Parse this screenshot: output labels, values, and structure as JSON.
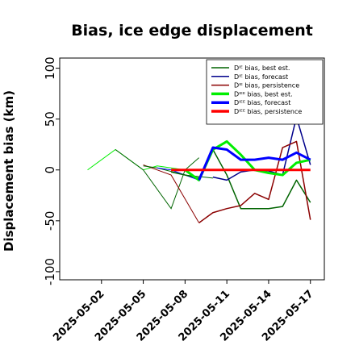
{
  "chart_data": {
    "type": "line",
    "title": "Bias, ice edge displacement",
    "xlabel": "",
    "ylabel": "Displacement bias (km)",
    "ylim": [
      -108,
      110
    ],
    "yticks": [
      100,
      50,
      0,
      -50,
      -100
    ],
    "xlim": [
      "2025-04-29",
      "2025-05-18"
    ],
    "xticks": [
      "2025-05-02",
      "2025-05-05",
      "2025-05-08",
      "2025-05-11",
      "2025-05-14",
      "2025-05-17"
    ],
    "highlighted_xtick": "2025-05-08",
    "highlight_color": "#228b22",
    "grid": false,
    "legend_position": "upper right",
    "series": [
      {
        "name": "Dᴵᴱ bias, best est.",
        "color": "#006400",
        "width": 1.5,
        "x": [
          "2025-05-07",
          "2025-05-09",
          "2025-05-10",
          "2025-05-11",
          "2025-05-12",
          "2025-05-13",
          "2025-05-14",
          "2025-05-15",
          "2025-05-16",
          "2025-05-17"
        ],
        "y": [
          -2,
          -8,
          20,
          -5,
          -38,
          -38,
          -38,
          -36,
          -10,
          -32
        ]
      },
      {
        "name": "Dᴵᴱ bias, forecast",
        "color": "#00008b",
        "width": 1.5,
        "x": [
          "2025-05-10",
          "2025-05-11",
          "2025-05-12",
          "2025-05-13",
          "2025-05-14",
          "2025-05-15",
          "2025-05-16",
          "2025-05-17"
        ],
        "y": [
          -7,
          -10,
          -2,
          0,
          -1,
          -5,
          52,
          5
        ]
      },
      {
        "name": "Dᴵᴱ bias, persistence",
        "color": "#8b0000",
        "width": 1.5,
        "x": [
          "2025-05-09",
          "2025-05-10",
          "2025-05-11",
          "2025-05-12",
          "2025-05-13",
          "2025-05-14",
          "2025-05-15",
          "2025-05-16",
          "2025-05-17"
        ],
        "y": [
          -52,
          -42,
          -38,
          -35,
          -23,
          -29,
          22,
          28,
          -49
        ]
      },
      {
        "name": "Dᴵᴱᴱ bias, best est.",
        "color": "#00ee00",
        "width": 3,
        "x": [
          "2025-05-08",
          "2025-05-09",
          "2025-05-10",
          "2025-05-11",
          "2025-05-12",
          "2025-05-13",
          "2025-05-14",
          "2025-05-15",
          "2025-05-16",
          "2025-05-17"
        ],
        "y": [
          0,
          -10,
          20,
          28,
          15,
          0,
          -3,
          -5,
          7,
          10
        ]
      },
      {
        "name": "Dᴵᴱᴱ bias, forecast",
        "color": "#0000ff",
        "width": 3,
        "x": [
          "2025-05-09",
          "2025-05-10",
          "2025-05-11",
          "2025-05-12",
          "2025-05-13",
          "2025-05-14",
          "2025-05-15",
          "2025-05-16",
          "2025-05-17"
        ],
        "y": [
          -10,
          22,
          20,
          10,
          10,
          12,
          10,
          17,
          10
        ]
      },
      {
        "name": "Dᴵᴱᴱ bias, persistence",
        "color": "#ff0000",
        "width": 3,
        "x": [
          "2025-05-07",
          "2025-05-09",
          "2025-05-11",
          "2025-05-13",
          "2025-05-15",
          "2025-05-17"
        ],
        "y": [
          0,
          0,
          0,
          0,
          0,
          0
        ]
      }
    ],
    "background_lines": [
      {
        "color": "#00ee00",
        "width": 1,
        "x": [
          "2025-05-01",
          "2025-05-03",
          "2025-05-05",
          "2025-05-06",
          "2025-05-08"
        ],
        "y": [
          0,
          20,
          0,
          4,
          0
        ]
      },
      {
        "color": "#006400",
        "width": 1,
        "x": [
          "2025-05-03",
          "2025-05-05",
          "2025-05-07",
          "2025-05-08",
          "2025-05-09"
        ],
        "y": [
          20,
          0,
          -38,
          0,
          12
        ]
      },
      {
        "color": "#8b0000",
        "width": 1,
        "x": [
          "2025-05-05",
          "2025-05-07",
          "2025-05-09"
        ],
        "y": [
          5,
          -5,
          -52
        ]
      },
      {
        "color": "#006400",
        "width": 1,
        "x": [
          "2025-05-05",
          "2025-05-06",
          "2025-05-08",
          "2025-05-10"
        ],
        "y": [
          4,
          2,
          -5,
          -8
        ]
      },
      {
        "color": "#0000ff",
        "width": 1,
        "x": [
          "2025-05-06",
          "2025-05-07",
          "2025-05-09"
        ],
        "y": [
          2,
          0,
          -10
        ]
      }
    ]
  }
}
